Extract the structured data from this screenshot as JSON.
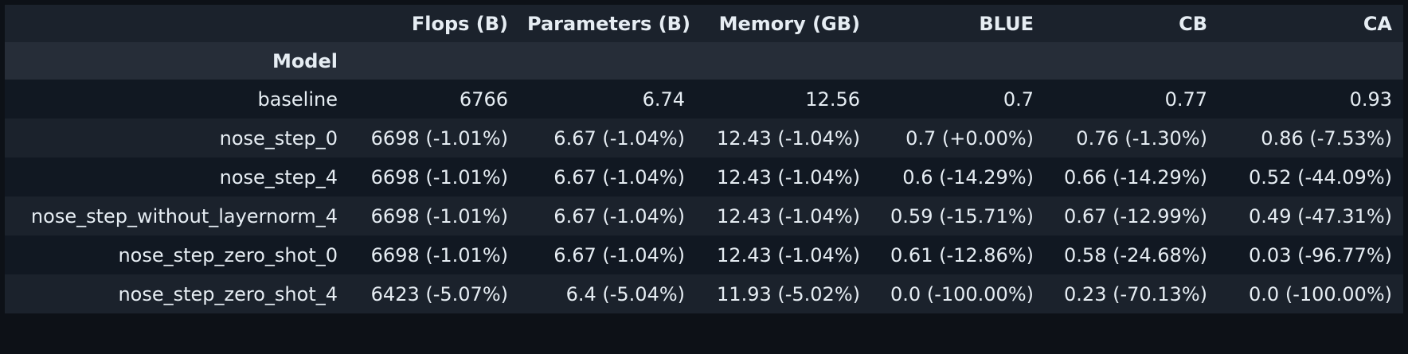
{
  "table": {
    "columns": [
      "",
      "Flops (B)",
      "Parameters (B)",
      "Memory (GB)",
      "BLUE",
      "CB",
      "CA"
    ],
    "index_name": "Model",
    "rows": [
      {
        "model": "baseline",
        "cells": [
          "6766",
          "6.74",
          "12.56",
          "0.7",
          "0.77",
          "0.93"
        ]
      },
      {
        "model": "nose_step_0",
        "cells": [
          "6698 (-1.01%)",
          "6.67 (-1.04%)",
          "12.43 (-1.04%)",
          "0.7 (+0.00%)",
          "0.76 (-1.30%)",
          "0.86 (-7.53%)"
        ]
      },
      {
        "model": "nose_step_4",
        "cells": [
          "6698 (-1.01%)",
          "6.67 (-1.04%)",
          "12.43 (-1.04%)",
          "0.6 (-14.29%)",
          "0.66 (-14.29%)",
          "0.52 (-44.09%)"
        ]
      },
      {
        "model": "nose_step_without_layernorm_4",
        "cells": [
          "6698 (-1.01%)",
          "6.67 (-1.04%)",
          "12.43 (-1.04%)",
          "0.59 (-15.71%)",
          "0.67 (-12.99%)",
          "0.49 (-47.31%)"
        ]
      },
      {
        "model": "nose_step_zero_shot_0",
        "cells": [
          "6698 (-1.01%)",
          "6.67 (-1.04%)",
          "12.43 (-1.04%)",
          "0.61 (-12.86%)",
          "0.58 (-24.68%)",
          "0.03 (-96.77%)"
        ]
      },
      {
        "model": "nose_step_zero_shot_4",
        "cells": [
          "6423 (-5.07%)",
          "6.4 (-5.04%)",
          "11.93 (-5.02%)",
          "0.0 (-100.00%)",
          "0.23 (-70.13%)",
          "0.0 (-100.00%)"
        ]
      }
    ]
  }
}
